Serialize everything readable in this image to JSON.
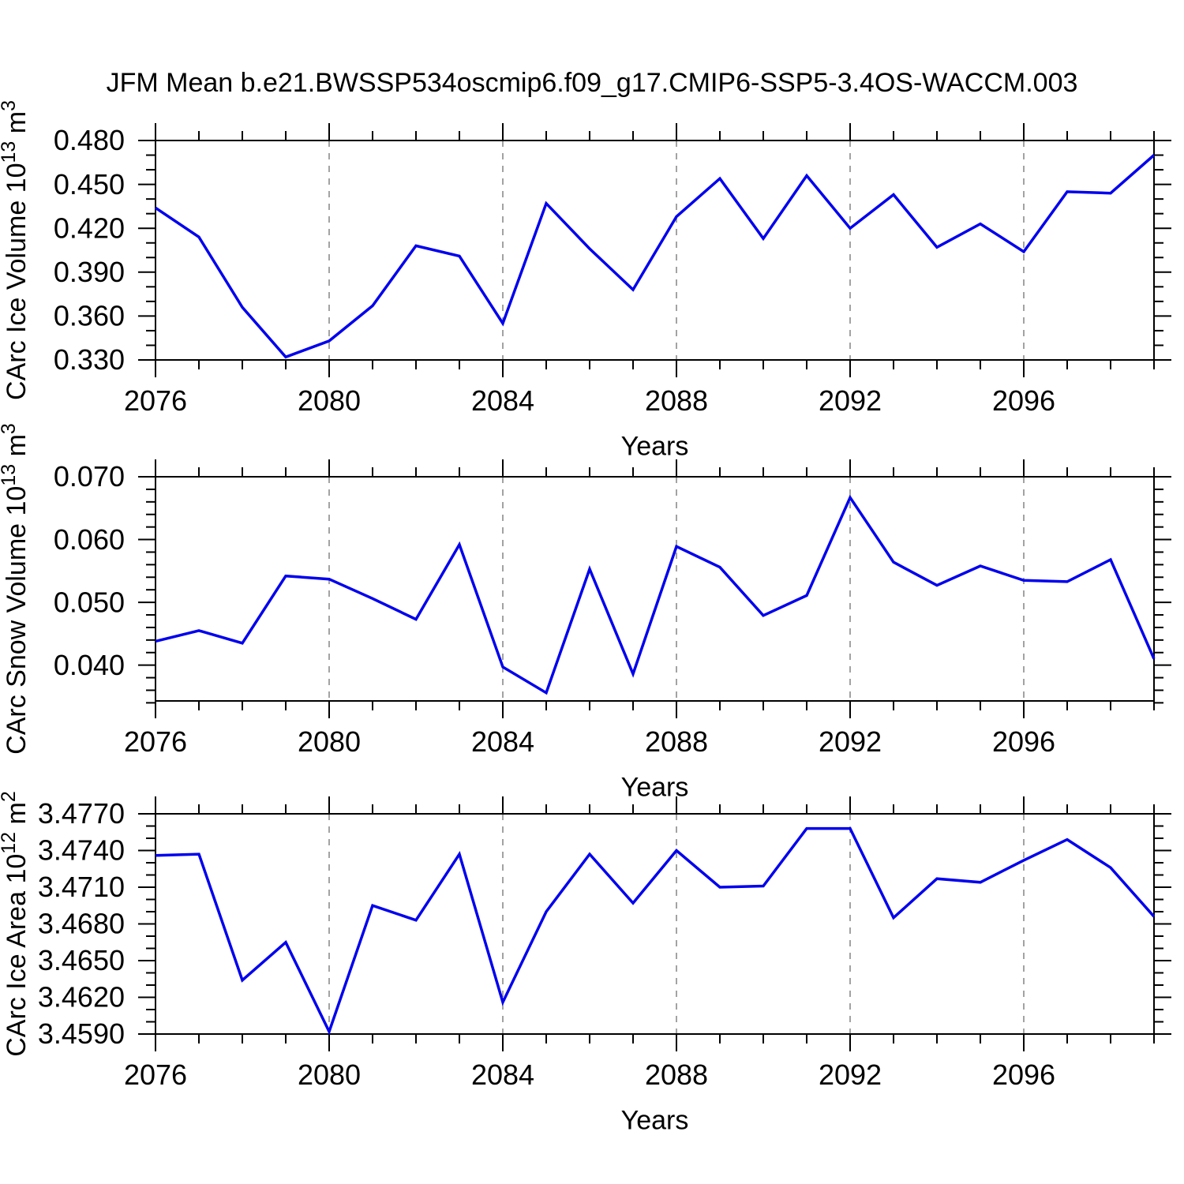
{
  "page": {
    "title": "JFM Mean b.e21.BWSSP534oscmip6.f09_g17.CMIP6-SSP5-3.4OS-WACCM.003",
    "background": "#ffffff"
  },
  "style": {
    "line_color": "#0000ee",
    "frame_color": "#000000",
    "grid_color": "#8c8c8c",
    "text_color": "#000000"
  },
  "x_axis": {
    "label": "Years",
    "start_year": 2076,
    "end_year": 2099,
    "major_ticks": [
      2076,
      2080,
      2084,
      2088,
      2092,
      2096
    ],
    "major_tick_labels": [
      "2076",
      "2080",
      "2084",
      "2088",
      "2092",
      "2096"
    ],
    "minor_step_years": 1,
    "grid_years": [
      2080,
      2084,
      2088,
      2092,
      2096
    ]
  },
  "chart_data": [
    {
      "type": "line",
      "title": "CArc Ice Volume 10^13 m^3",
      "ylabel_parts": [
        {
          "t": "CArc Ice Volume 10"
        },
        {
          "t": "13",
          "sup": true
        },
        {
          "t": " m"
        },
        {
          "t": "3",
          "sup": true
        }
      ],
      "xlabel": "Years",
      "x": [
        2076,
        2077,
        2078,
        2079,
        2080,
        2081,
        2082,
        2083,
        2084,
        2085,
        2086,
        2087,
        2088,
        2089,
        2090,
        2091,
        2092,
        2093,
        2094,
        2095,
        2096,
        2097,
        2098,
        2099
      ],
      "values": [
        0.434,
        0.414,
        0.366,
        0.332,
        0.343,
        0.367,
        0.408,
        0.401,
        0.355,
        0.437,
        0.406,
        0.378,
        0.428,
        0.454,
        0.413,
        0.456,
        0.42,
        0.443,
        0.407,
        0.423,
        0.404,
        0.445,
        0.444,
        0.47
      ],
      "ylim": [
        0.33,
        0.48
      ],
      "ytick_values": [
        0.48,
        0.45,
        0.42,
        0.39,
        0.36,
        0.33
      ],
      "ytick_labels": [
        "0.480",
        "0.450",
        "0.420",
        "0.390",
        "0.360",
        "0.330"
      ],
      "minor_step": 0.01,
      "grid": "vertical-dashed",
      "legend": "none"
    },
    {
      "type": "line",
      "title": "CArc Snow Volume 10^13 m^3",
      "ylabel_parts": [
        {
          "t": "CArc Snow Volume 10"
        },
        {
          "t": "13",
          "sup": true
        },
        {
          "t": " m"
        },
        {
          "t": "3",
          "sup": true
        }
      ],
      "xlabel": "Years",
      "x": [
        2076,
        2077,
        2078,
        2079,
        2080,
        2081,
        2082,
        2083,
        2084,
        2085,
        2086,
        2087,
        2088,
        2089,
        2090,
        2091,
        2092,
        2093,
        2094,
        2095,
        2096,
        2097,
        2098,
        2099
      ],
      "values": [
        0.0438,
        0.0455,
        0.0435,
        0.0542,
        0.0537,
        0.0506,
        0.0473,
        0.0592,
        0.0397,
        0.0356,
        0.0553,
        0.0386,
        0.0589,
        0.0556,
        0.0479,
        0.0511,
        0.0667,
        0.0564,
        0.0527,
        0.0558,
        0.0535,
        0.0533,
        0.0568,
        0.041
      ],
      "ylim": [
        0.0343,
        0.07
      ],
      "ytick_values": [
        0.07,
        0.06,
        0.05,
        0.04
      ],
      "ytick_labels": [
        "0.070",
        "0.060",
        "0.050",
        "0.040"
      ],
      "minor_step": 0.002,
      "grid": "vertical-dashed",
      "legend": "none"
    },
    {
      "type": "line",
      "title": "CArc Ice Area 10^12 m^2",
      "ylabel_parts": [
        {
          "t": "CArc Ice Area 10"
        },
        {
          "t": "12",
          "sup": true
        },
        {
          "t": " m"
        },
        {
          "t": "2",
          "sup": true
        }
      ],
      "xlabel": "Years",
      "x": [
        2076,
        2077,
        2078,
        2079,
        2080,
        2081,
        2082,
        2083,
        2084,
        2085,
        2086,
        2087,
        2088,
        2089,
        2090,
        2091,
        2092,
        2093,
        2094,
        2095,
        2096,
        2097,
        2098,
        2099
      ],
      "values": [
        3.4736,
        3.4737,
        3.4634,
        3.4665,
        3.4592,
        3.4695,
        3.4683,
        3.4737,
        3.4616,
        3.469,
        3.4737,
        3.4697,
        3.474,
        3.471,
        3.4711,
        3.4758,
        3.4758,
        3.4685,
        3.4717,
        3.4714,
        3.4732,
        3.4749,
        3.4726,
        3.4686
      ],
      "ylim": [
        3.459,
        3.477
      ],
      "ytick_values": [
        3.477,
        3.474,
        3.471,
        3.468,
        3.465,
        3.462,
        3.459
      ],
      "ytick_labels": [
        "3.4770",
        "3.4740",
        "3.4710",
        "3.4680",
        "3.4650",
        "3.4620",
        "3.4590"
      ],
      "minor_step": 0.001,
      "grid": "vertical-dashed",
      "legend": "none"
    }
  ]
}
